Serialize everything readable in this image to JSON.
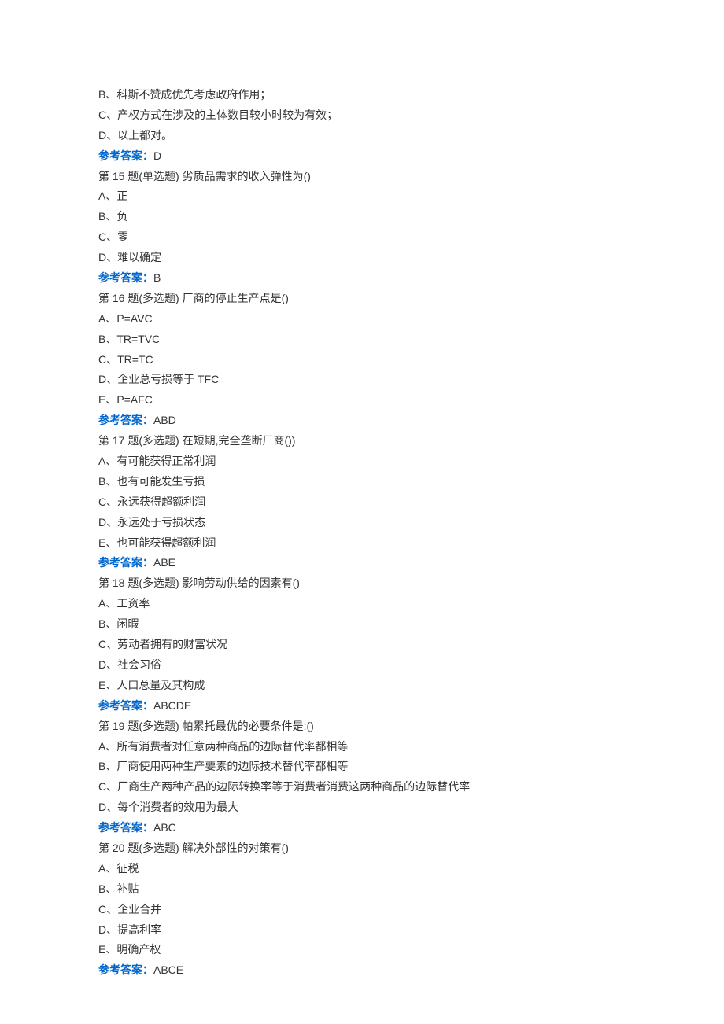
{
  "text_color": "#333333",
  "answer_label_color": "#0066cc",
  "background_color": "#ffffff",
  "font_size": 14,
  "line_height": 1.85,
  "answer_label": "参考答案：",
  "orphan_options": [
    "B、科斯不赞成优先考虑政府作用；",
    "C、产权方式在涉及的主体数目较小时较为有效；",
    "D、以上都对。"
  ],
  "orphan_answer": "D",
  "questions": [
    {
      "header": "第 15 题(单选题)  劣质品需求的收入弹性为()",
      "options": [
        "A、正",
        "B、负",
        "C、零",
        "D、难以确定"
      ],
      "answer": "B"
    },
    {
      "header": "第 16 题(多选题)  厂商的停止生产点是()",
      "options": [
        "A、P=AVC",
        "B、TR=TVC",
        "C、TR=TC",
        "D、企业总亏损等于 TFC",
        "E、P=AFC"
      ],
      "answer": "ABD"
    },
    {
      "header": "第 17 题(多选题)  在短期,完全垄断厂商())",
      "options": [
        "A、有可能获得正常利润",
        "B、也有可能发生亏损",
        "C、永远获得超额利润",
        "D、永远处于亏损状态",
        "E、也可能获得超额利润"
      ],
      "answer": "ABE"
    },
    {
      "header": "第 18 题(多选题)  影响劳动供给的因素有()",
      "options": [
        "A、工资率",
        "B、闲暇",
        "C、劳动者拥有的财富状况",
        "D、社会习俗",
        "E、人口总量及其构成"
      ],
      "answer": "ABCDE"
    },
    {
      "header": "第 19 题(多选题)  帕累托最优的必要条件是:()",
      "options": [
        "A、所有消费者对任意两种商品的边际替代率都相等",
        "B、厂商使用两种生产要素的边际技术替代率都相等",
        "C、厂商生产两种产品的边际转换率等于消费者消费这两种商品的边际替代率",
        "D、每个消费者的效用为最大"
      ],
      "answer": "ABC"
    },
    {
      "header": "第 20 题(多选题)  解决外部性的对策有()",
      "options": [
        "A、征税",
        "B、补贴",
        "C、企业合并",
        "D、提高利率",
        "E、明确产权"
      ],
      "answer": "ABCE"
    }
  ]
}
